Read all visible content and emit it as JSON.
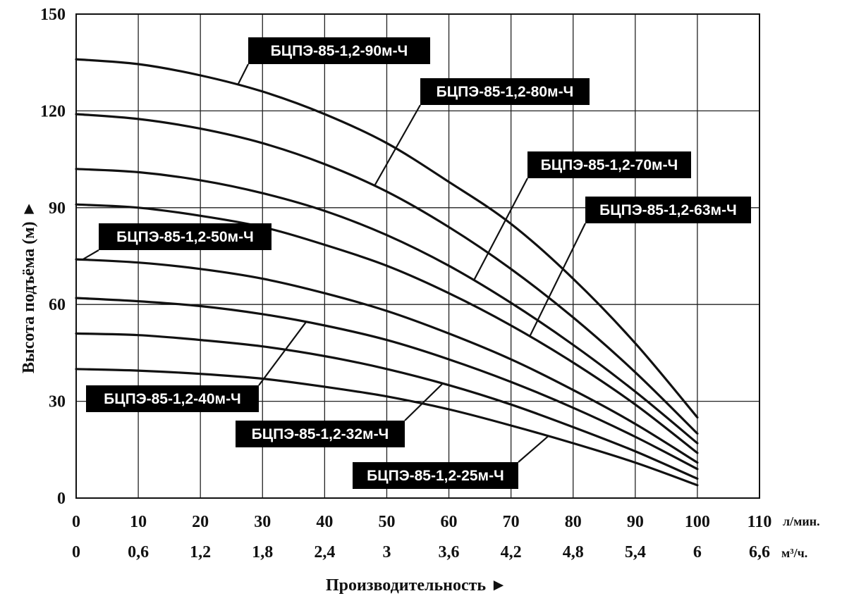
{
  "chart_data": {
    "type": "line",
    "title": "",
    "xlabel": "Производительность ►",
    "ylabel": "Высота подъёма (м) ►",
    "xlim": [
      0,
      110
    ],
    "ylim": [
      0,
      150
    ],
    "grid": true,
    "x_unit": "л/мин.",
    "x2_unit": "м³/ч.",
    "x_ticks": [
      "0",
      "10",
      "20",
      "30",
      "40",
      "50",
      "60",
      "70",
      "80",
      "90",
      "100",
      "110"
    ],
    "x2_ticks": [
      "0",
      "0,6",
      "1,2",
      "1,8",
      "2,4",
      "3",
      "3,6",
      "4,2",
      "4,8",
      "5,4",
      "6",
      "6,6"
    ],
    "y_ticks": [
      "0",
      "30",
      "60",
      "90",
      "120",
      "150"
    ],
    "x": [
      0,
      10,
      20,
      30,
      40,
      50,
      60,
      70,
      80,
      90,
      100
    ],
    "series": [
      {
        "name": "БЦПЭ-85-1,2-90м-Ч",
        "values": [
          136,
          134.5,
          131,
          126,
          119,
          110,
          98,
          85,
          68,
          48,
          25
        ]
      },
      {
        "name": "БЦПЭ-85-1,2-80м-Ч",
        "values": [
          119,
          117.5,
          114.5,
          110,
          103.5,
          95,
          84,
          71,
          56,
          39,
          20
        ]
      },
      {
        "name": "БЦПЭ-85-1,2-70м-Ч",
        "values": [
          102,
          101,
          98.5,
          94.5,
          89,
          81.5,
          72,
          60.5,
          47.5,
          33,
          17
        ]
      },
      {
        "name": "БЦПЭ-85-1,2-63м-Ч",
        "values": [
          91,
          90,
          87.5,
          84,
          78.5,
          72,
          63.5,
          53.5,
          42,
          29,
          14
        ]
      },
      {
        "name": "БЦПЭ-85-1,2-50м-Ч",
        "values": [
          74,
          73,
          71,
          68,
          63.5,
          58,
          51,
          43,
          33.5,
          23,
          11
        ]
      },
      {
        "name": "БЦПЭ-85-1,2-40м-Ч",
        "values": [
          62,
          61,
          59.5,
          57,
          53.5,
          49,
          43,
          36,
          28,
          19,
          9
        ]
      },
      {
        "name": "БЦПЭ-85-1,2-32м-Ч",
        "values": [
          51,
          50.5,
          49,
          47,
          44,
          40,
          35,
          29,
          22,
          14.5,
          6
        ]
      },
      {
        "name": "БЦПЭ-85-1,2-25м-Ч",
        "values": [
          40,
          39.5,
          38.5,
          37,
          34.5,
          31.5,
          27.5,
          22.5,
          17,
          11,
          4
        ]
      }
    ]
  }
}
